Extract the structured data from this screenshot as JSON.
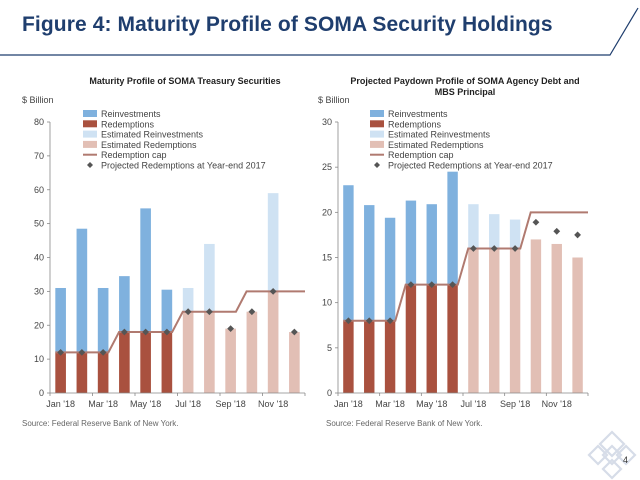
{
  "page": {
    "title": "Figure 4: Maturity Profile of SOMA Security Holdings",
    "page_number": "4",
    "colors": {
      "title": "#1f3e6e",
      "accent_line": "#1f3e6e",
      "logo": "#d6dce8"
    }
  },
  "legend_items": [
    {
      "label": "Reinvestments",
      "color": "#7fb1de",
      "kind": "swatch"
    },
    {
      "label": "Redemptions",
      "color": "#a9513f",
      "kind": "swatch"
    },
    {
      "label": "Estimated Reinvestments",
      "color": "#cfe2f3",
      "kind": "swatch"
    },
    {
      "label": "Estimated Redemptions",
      "color": "#e2bfb5",
      "kind": "swatch"
    },
    {
      "label": "Redemption cap",
      "color": "#b07a70",
      "kind": "line"
    },
    {
      "label": "Projected Redemptions at Year-end 2017",
      "color": "#555555",
      "kind": "diamond"
    }
  ],
  "chart_data": [
    {
      "type": "bar",
      "title": "Maturity Profile of SOMA Treasury Securities",
      "ylabel": "$ Billion",
      "source": "Source: Federal Reserve Bank of New York.",
      "ylim": [
        0,
        80
      ],
      "yticks": [
        "0",
        "10",
        "20",
        "30",
        "40",
        "50",
        "60",
        "70",
        "80"
      ],
      "categories": [
        "Jan '18",
        "Feb '18",
        "Mar '18",
        "Apr '18",
        "May '18",
        "Jun '18",
        "Jul '18",
        "Aug '18",
        "Sep '18",
        "Oct '18",
        "Nov '18",
        "Dec '18"
      ],
      "x_tick_labels": [
        "Jan '18",
        "Mar '18",
        "May '18",
        "Jul '18",
        "Sep '18",
        "Nov '18"
      ],
      "stacked": true,
      "grid": false,
      "legend": "top-left",
      "series": [
        {
          "name": "Redemptions",
          "values": [
            12,
            12,
            12,
            18,
            18,
            18,
            0,
            0,
            0,
            0,
            0,
            0
          ]
        },
        {
          "name": "Reinvestments",
          "values": [
            19,
            36.5,
            19,
            16.5,
            36.5,
            12.5,
            0,
            0,
            0,
            0,
            0,
            0
          ]
        },
        {
          "name": "Estimated Redemptions",
          "values": [
            0,
            0,
            0,
            0,
            0,
            0,
            24,
            24,
            19,
            24,
            30,
            18
          ]
        },
        {
          "name": "Estimated Reinvestments",
          "values": [
            0,
            0,
            0,
            0,
            0,
            0,
            7,
            20,
            0,
            0,
            29,
            0
          ]
        }
      ],
      "cap": [
        12,
        12,
        12,
        18,
        18,
        18,
        24,
        24,
        24,
        30,
        30,
        30
      ],
      "projected": [
        12,
        12,
        12,
        18,
        18,
        18,
        24,
        24,
        19,
        24,
        30,
        18
      ]
    },
    {
      "type": "bar",
      "title": "Projected Paydown Profile of SOMA Agency Debt and MBS Principal",
      "ylabel": "$ Billion",
      "source": "Source: Federal Reserve Bank of New York.",
      "ylim": [
        0,
        30
      ],
      "yticks": [
        "0",
        "5",
        "10",
        "15",
        "20",
        "25",
        "30"
      ],
      "categories": [
        "Jan '18",
        "Feb '18",
        "Mar '18",
        "Apr '18",
        "May '18",
        "Jun '18",
        "Jul '18",
        "Aug '18",
        "Sep '18",
        "Oct '18",
        "Nov '18",
        "Dec '18"
      ],
      "x_tick_labels": [
        "Jan '18",
        "Mar '18",
        "May '18",
        "Jul '18",
        "Sep '18",
        "Nov '18"
      ],
      "stacked": true,
      "grid": false,
      "legend": "top-left",
      "series": [
        {
          "name": "Redemptions",
          "values": [
            8,
            8,
            8,
            12,
            12,
            12,
            0,
            0,
            0,
            0,
            0,
            0
          ]
        },
        {
          "name": "Reinvestments",
          "values": [
            15,
            12.8,
            11.4,
            9.3,
            8.9,
            12.5,
            0,
            0,
            0,
            0,
            0,
            0
          ]
        },
        {
          "name": "Estimated Redemptions",
          "values": [
            0,
            0,
            0,
            0,
            0,
            0,
            16,
            16,
            16,
            17,
            16.5,
            15
          ]
        },
        {
          "name": "Estimated Reinvestments",
          "values": [
            0,
            0,
            0,
            0,
            0,
            0,
            4.9,
            3.8,
            3.2,
            0,
            0,
            0
          ]
        }
      ],
      "cap": [
        8,
        8,
        8,
        12,
        12,
        12,
        16,
        16,
        16,
        20,
        20,
        20
      ],
      "projected": [
        8,
        8,
        8,
        12,
        12,
        12,
        16,
        16,
        16,
        18.9,
        17.9,
        17.5
      ]
    }
  ]
}
